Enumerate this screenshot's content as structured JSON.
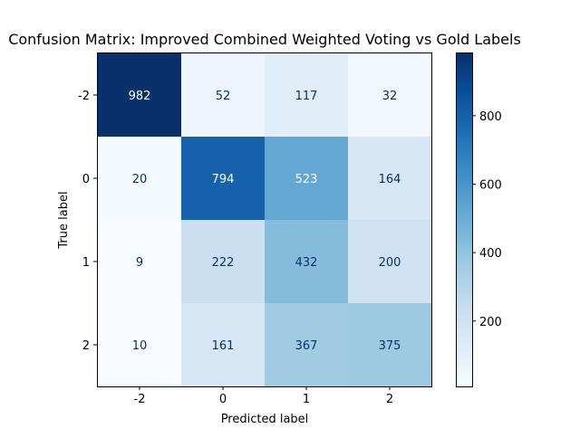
{
  "chart_data": {
    "type": "heatmap",
    "title": "Confusion Matrix: Improved Combined Weighted Voting vs Gold Labels",
    "xlabel": "Predicted label",
    "ylabel": "True label",
    "x_labels": [
      "-2",
      "0",
      "1",
      "2"
    ],
    "y_labels": [
      "-2",
      "0",
      "1",
      "2"
    ],
    "matrix": [
      [
        982,
        52,
        117,
        32
      ],
      [
        20,
        794,
        523,
        164
      ],
      [
        9,
        222,
        432,
        200
      ],
      [
        10,
        161,
        367,
        375
      ]
    ],
    "colormap": "Blues",
    "colorbar": {
      "range": [
        9,
        982
      ],
      "ticks": [
        200,
        400,
        600,
        800
      ]
    }
  }
}
